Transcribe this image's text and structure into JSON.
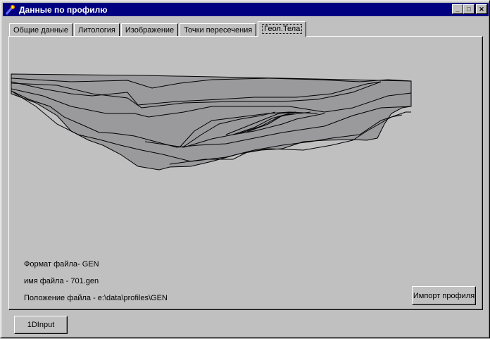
{
  "window": {
    "title": "Данные по профилю",
    "icon": "torch-icon"
  },
  "tabs": [
    {
      "label": "Общие данные"
    },
    {
      "label": "Литология"
    },
    {
      "label": "Изображение"
    },
    {
      "label": "Точки пересечения"
    },
    {
      "label": "Геол.Тела",
      "active": true
    }
  ],
  "info": {
    "format": "Формат файла- GEN",
    "name": "имя файла - 701.gen",
    "location": "Положение файла  - e:\\data\\profiles\\GEN"
  },
  "buttons": {
    "import": "Импорт профиля",
    "input1d": "1DInput"
  },
  "colors": {
    "titlebar": "#000080",
    "body_fill": "#9a999c",
    "background": "#c0c0c0"
  }
}
